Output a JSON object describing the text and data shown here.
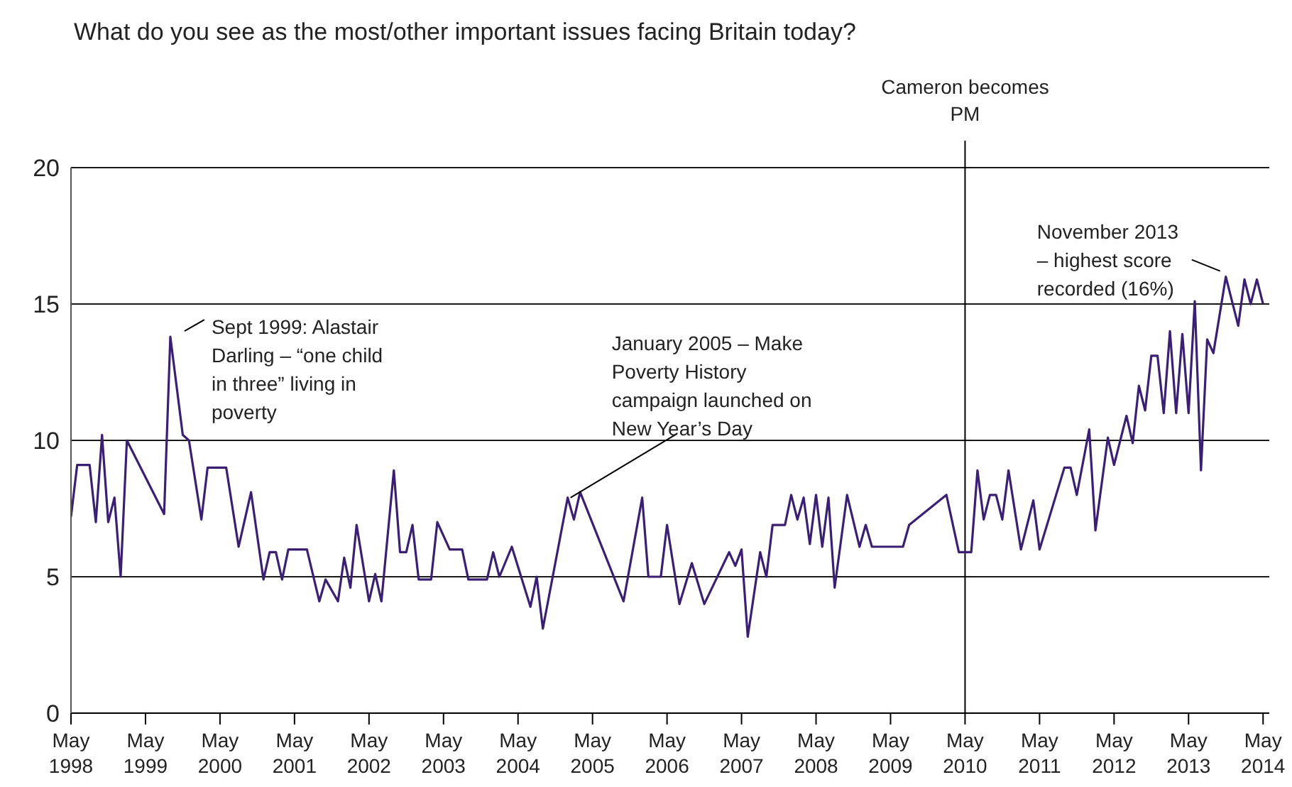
{
  "chart_data": {
    "type": "line",
    "title": "What do you see as the most/other important issues facing Britain today?",
    "x": [
      "1998-05",
      "1998-06",
      "1998-08",
      "1998-09",
      "1998-10",
      "1998-11",
      "1998-12",
      "1999-01",
      "1999-02",
      "1999-08",
      "1999-09",
      "1999-11",
      "1999-12",
      "2000-02",
      "2000-03",
      "2000-06",
      "2000-08",
      "2000-10",
      "2000-12",
      "2001-01",
      "2001-02",
      "2001-03",
      "2001-04",
      "2001-07",
      "2001-09",
      "2001-10",
      "2001-12",
      "2002-01",
      "2002-02",
      "2002-03",
      "2002-05",
      "2002-06",
      "2002-07",
      "2002-09",
      "2002-10",
      "2002-11",
      "2002-12",
      "2003-01",
      "2003-03",
      "2003-04",
      "2003-06",
      "2003-08",
      "2003-09",
      "2003-12",
      "2004-01",
      "2004-02",
      "2004-04",
      "2004-07",
      "2004-08",
      "2004-09",
      "2005-01",
      "2005-02",
      "2005-03",
      "2005-10",
      "2006-01",
      "2006-02",
      "2006-04",
      "2006-05",
      "2006-07",
      "2006-09",
      "2006-11",
      "2007-03",
      "2007-04",
      "2007-05",
      "2007-06",
      "2007-08",
      "2007-09",
      "2007-10",
      "2007-12",
      "2008-01",
      "2008-02",
      "2008-03",
      "2008-04",
      "2008-05",
      "2008-06",
      "2008-07",
      "2008-08",
      "2008-10",
      "2008-12",
      "2009-01",
      "2009-02",
      "2009-07",
      "2009-08",
      "2010-02",
      "2010-04",
      "2010-06",
      "2010-07",
      "2010-08",
      "2010-09",
      "2010-10",
      "2010-11",
      "2010-12",
      "2011-02",
      "2011-04",
      "2011-05",
      "2011-09",
      "2011-10",
      "2011-11",
      "2012-01",
      "2012-02",
      "2012-04",
      "2012-05",
      "2012-07",
      "2012-08",
      "2012-09",
      "2012-10",
      "2012-11",
      "2012-12",
      "2013-01",
      "2013-02",
      "2013-03",
      "2013-04",
      "2013-05",
      "2013-06",
      "2013-07",
      "2013-08",
      "2013-09",
      "2013-11",
      "2014-01",
      "2014-02",
      "2014-03",
      "2014-04",
      "2014-05"
    ],
    "values": [
      7.2,
      9.1,
      9.1,
      7.0,
      10.2,
      7.0,
      7.9,
      5.0,
      10.0,
      7.3,
      13.8,
      10.2,
      10.0,
      7.1,
      9.0,
      9.0,
      6.1,
      8.1,
      4.9,
      5.9,
      5.9,
      4.9,
      6.0,
      6.0,
      4.1,
      4.9,
      4.1,
      5.7,
      4.6,
      6.9,
      4.1,
      5.1,
      4.1,
      8.9,
      5.9,
      5.9,
      6.9,
      4.9,
      4.9,
      7.0,
      6.0,
      6.0,
      4.9,
      4.9,
      5.9,
      5.0,
      6.1,
      3.9,
      5.0,
      3.1,
      7.9,
      7.1,
      8.1,
      4.1,
      7.9,
      5.0,
      5.0,
      6.9,
      4.0,
      5.5,
      4.0,
      5.9,
      5.4,
      6.0,
      2.8,
      5.9,
      5.0,
      6.9,
      6.9,
      8.0,
      7.1,
      7.9,
      6.2,
      8.0,
      6.1,
      7.9,
      4.6,
      8.0,
      6.1,
      6.9,
      6.1,
      6.1,
      6.9,
      8.0,
      5.9,
      5.9,
      8.9,
      7.1,
      8.0,
      8.0,
      7.1,
      8.9,
      6.0,
      7.8,
      6.0,
      9.0,
      9.0,
      8.0,
      10.4,
      6.7,
      10.1,
      9.1,
      10.9,
      9.9,
      12.0,
      11.1,
      13.1,
      13.1,
      11.0,
      14.0,
      11.0,
      13.9,
      11.0,
      15.1,
      8.9,
      13.7,
      13.2,
      16.0,
      14.2,
      15.9,
      15.0,
      15.9,
      15.0
    ],
    "color": "#3b1f73",
    "xlim": [
      "1998-05",
      "2014-06"
    ],
    "xticks": [
      {
        "value": "1998-05",
        "label": "May 1998"
      },
      {
        "value": "1999-05",
        "label": "May 1999"
      },
      {
        "value": "2000-05",
        "label": "May 2000"
      },
      {
        "value": "2001-05",
        "label": "May 2001"
      },
      {
        "value": "2002-05",
        "label": "May 2002"
      },
      {
        "value": "2003-05",
        "label": "May 2003"
      },
      {
        "value": "2004-05",
        "label": "May 2004"
      },
      {
        "value": "2005-05",
        "label": "May 2005"
      },
      {
        "value": "2006-05",
        "label": "May 2006"
      },
      {
        "value": "2007-05",
        "label": "May 2007"
      },
      {
        "value": "2008-05",
        "label": "May 2008"
      },
      {
        "value": "2009-05",
        "label": "May 2009"
      },
      {
        "value": "2010-05",
        "label": "May 2010"
      },
      {
        "value": "2011-05",
        "label": "May 2011"
      },
      {
        "value": "2012-05",
        "label": "May 2012"
      },
      {
        "value": "2013-05",
        "label": "May 2013"
      },
      {
        "value": "2014-05",
        "label": "May 2014"
      }
    ],
    "ylim": [
      0,
      20
    ],
    "yticks": [
      0,
      5,
      10,
      15,
      20
    ],
    "grid": "y",
    "ref_lines": [
      {
        "axis": "x",
        "value": "2010-05",
        "label": "Cameron becomes PM",
        "color": "#000000"
      }
    ],
    "annotations": [
      {
        "text": "Sept 1999: Alastair Darling –  “one child in three” living in poverty",
        "x": "1999-09",
        "y": 13.8
      },
      {
        "text": "January 2005 – Make Poverty History campaign launched on New Year’s Day",
        "x": "2005-01",
        "y": 7.9
      },
      {
        "text": "November 2013 – highest score recorded (16%)",
        "x": "2013-11",
        "y": 16.0
      }
    ]
  }
}
